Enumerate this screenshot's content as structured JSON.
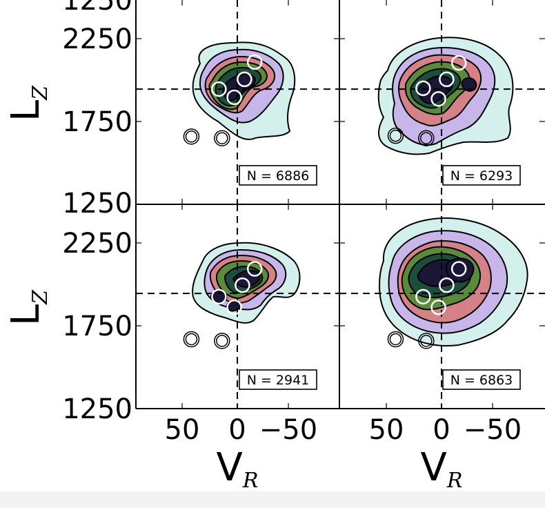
{
  "chart_data": {
    "type": "contour",
    "ylabel": "L",
    "ylabel_sub": "Z",
    "xlabel": "V",
    "xlabel_sub": "R",
    "xlim": [
      100,
      -100
    ],
    "ylim": [
      1250,
      2750
    ],
    "y_ticks": [
      "1250",
      "1750",
      "2250"
    ],
    "y_top_clipped_label": "1250",
    "x_ticks": [
      "50",
      "0",
      "−50"
    ],
    "x_tick_values": [
      50,
      0,
      -50
    ],
    "reference_lines": {
      "v_r": 0,
      "l_z": 1950
    },
    "contour_colors": [
      "#d4f0ec",
      "#c8b6ea",
      "#d48188",
      "#5c8a3c",
      "#1d4d3c",
      "#1a1638"
    ],
    "panels": [
      {
        "n_label": "N = 6886",
        "circles": [
          [
            45,
            1660
          ],
          [
            15,
            1650
          ],
          [
            -17,
            2115
          ],
          [
            -7,
            2010
          ],
          [
            18,
            1950
          ],
          [
            3,
            1900
          ]
        ]
      },
      {
        "n_label": "N = 6293",
        "circles": [
          [
            45,
            1665
          ],
          [
            15,
            1650
          ],
          [
            -17,
            2110
          ],
          [
            -5,
            2010
          ],
          [
            18,
            1955
          ],
          [
            3,
            1890
          ]
        ]
      },
      {
        "n_label": "N = 2941",
        "circles": [
          [
            45,
            1670
          ],
          [
            15,
            1660
          ],
          [
            -17,
            2100
          ],
          [
            -5,
            2000
          ],
          [
            18,
            1930
          ],
          [
            3,
            1865
          ]
        ]
      },
      {
        "n_label": "N = 6863",
        "circles": [
          [
            45,
            1670
          ],
          [
            15,
            1660
          ],
          [
            -17,
            2100
          ],
          [
            -5,
            2000
          ],
          [
            18,
            1930
          ],
          [
            3,
            1865
          ]
        ]
      }
    ]
  }
}
